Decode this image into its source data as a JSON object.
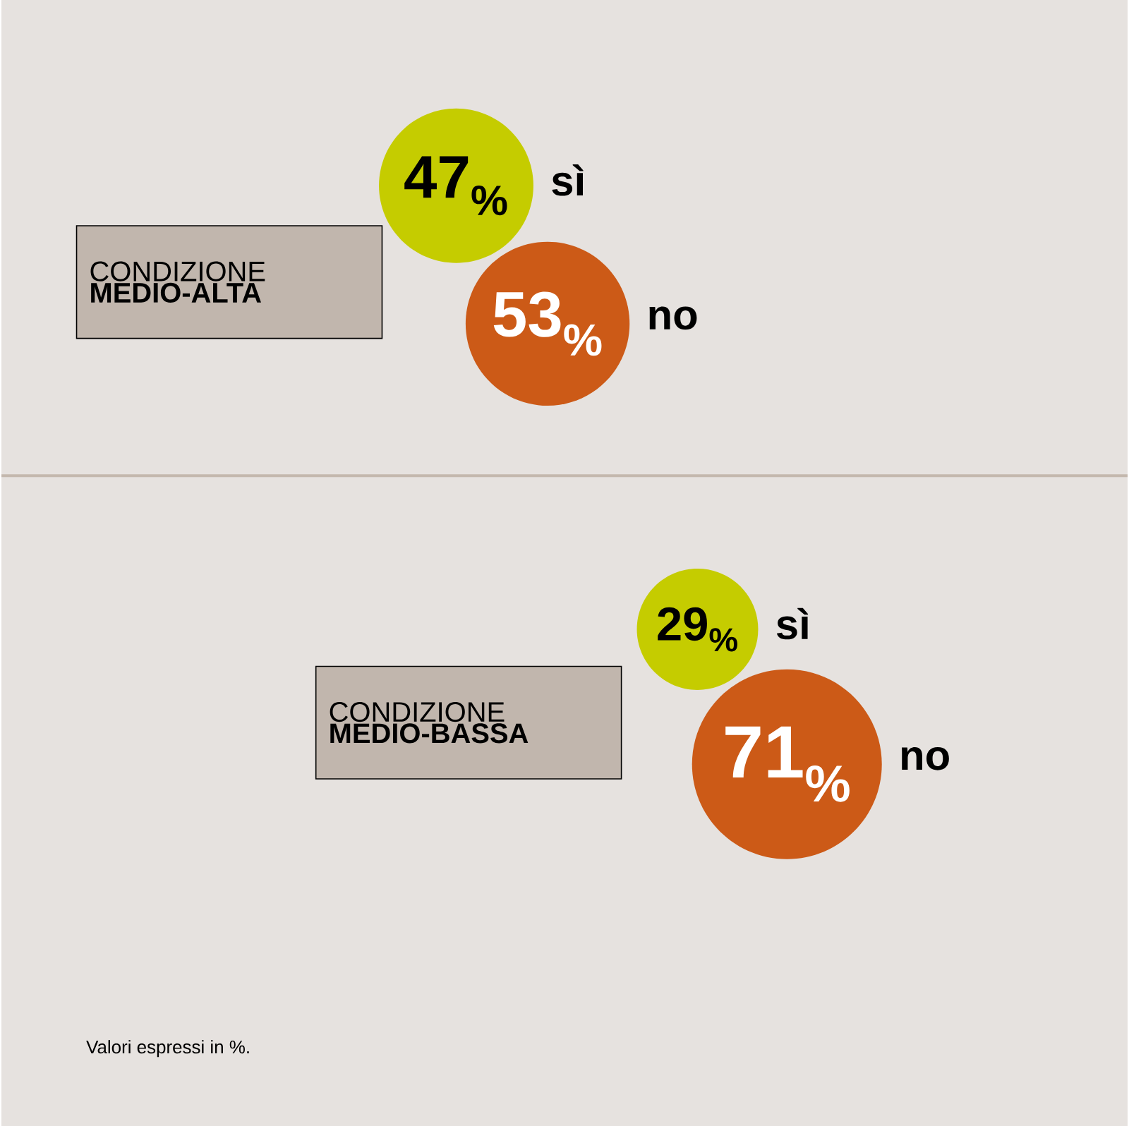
{
  "chart_data": [
    {
      "type": "other",
      "title": "CONDIZIONE **MEDIO-ALTA**",
      "categories": [
        "sì",
        "no"
      ],
      "values": [
        47,
        53
      ],
      "value_labels": [
        "47$_{%}$",
        "53$_{%}$"
      ],
      "colors": [
        "#c5cc00",
        "#cc5a17"
      ]
    },
    {
      "type": "other",
      "title": "CONDIZIONE **MEDIO-BASSA**",
      "categories": [
        "sì",
        "no"
      ],
      "values": [
        29,
        71
      ],
      "value_labels": [
        "29$_{%}$",
        "71$_{%}$"
      ],
      "colors": [
        "#c5cc00",
        "#cc5a17"
      ],
      "annotations": [
        "Valori espressi in %."
      ]
    }
  ]
}
